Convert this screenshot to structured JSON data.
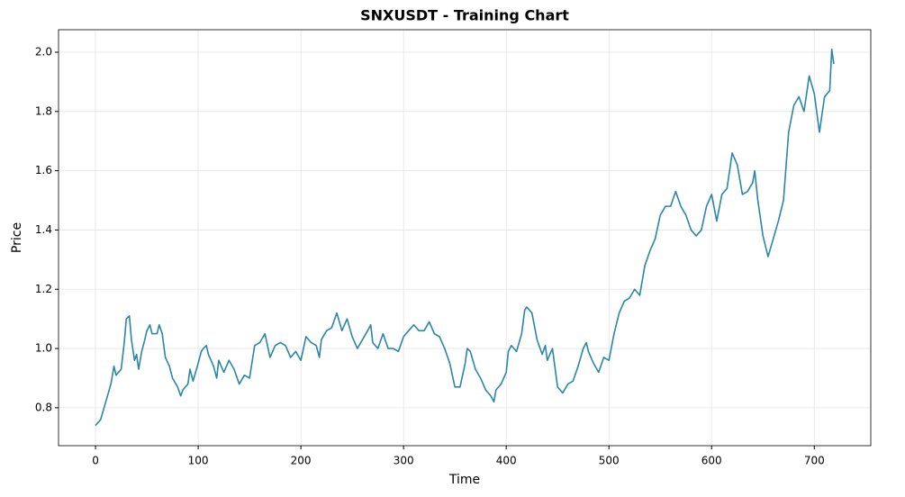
{
  "chart_data": {
    "type": "line",
    "title": "SNXUSDT - Training Chart",
    "xlabel": "Time",
    "ylabel": "Price",
    "color": "#2a86a8",
    "grid": true,
    "x": [
      0,
      5,
      10,
      15,
      18,
      20,
      25,
      28,
      30,
      33,
      35,
      38,
      40,
      42,
      45,
      48,
      50,
      53,
      55,
      60,
      62,
      65,
      68,
      72,
      75,
      80,
      83,
      85,
      90,
      92,
      95,
      100,
      103,
      105,
      108,
      110,
      115,
      118,
      120,
      125,
      130,
      135,
      140,
      145,
      150,
      155,
      160,
      165,
      170,
      175,
      180,
      185,
      190,
      195,
      200,
      205,
      210,
      215,
      218,
      220,
      225,
      230,
      235,
      240,
      245,
      250,
      255,
      260,
      265,
      268,
      270,
      275,
      280,
      285,
      290,
      295,
      300,
      305,
      310,
      315,
      320,
      325,
      330,
      335,
      340,
      345,
      350,
      355,
      360,
      362,
      365,
      370,
      375,
      380,
      385,
      388,
      390,
      395,
      400,
      402,
      405,
      410,
      415,
      418,
      420,
      425,
      430,
      435,
      438,
      440,
      445,
      450,
      455,
      460,
      465,
      470,
      475,
      478,
      480,
      485,
      490,
      495,
      500,
      505,
      510,
      515,
      520,
      525,
      530,
      535,
      540,
      545,
      550,
      555,
      560,
      565,
      570,
      575,
      580,
      585,
      590,
      595,
      600,
      605,
      610,
      615,
      620,
      625,
      630,
      635,
      640,
      642,
      645,
      650,
      655,
      660,
      665,
      670,
      675,
      680,
      685,
      690,
      695,
      700,
      705,
      710,
      715,
      717,
      719
    ],
    "values": [
      0.74,
      0.76,
      0.82,
      0.88,
      0.94,
      0.91,
      0.93,
      1.02,
      1.1,
      1.11,
      1.03,
      0.96,
      0.98,
      0.93,
      0.99,
      1.03,
      1.06,
      1.08,
      1.05,
      1.05,
      1.08,
      1.05,
      0.97,
      0.94,
      0.9,
      0.87,
      0.84,
      0.86,
      0.88,
      0.93,
      0.89,
      0.95,
      0.99,
      1.0,
      1.01,
      0.98,
      0.94,
      0.9,
      0.96,
      0.92,
      0.96,
      0.93,
      0.88,
      0.91,
      0.9,
      1.01,
      1.02,
      1.05,
      0.97,
      1.01,
      1.02,
      1.01,
      0.97,
      0.99,
      0.96,
      1.04,
      1.02,
      1.01,
      0.97,
      1.03,
      1.06,
      1.07,
      1.12,
      1.06,
      1.1,
      1.04,
      1.0,
      1.03,
      1.06,
      1.08,
      1.02,
      1.0,
      1.05,
      1.0,
      1.0,
      0.99,
      1.04,
      1.06,
      1.08,
      1.06,
      1.06,
      1.09,
      1.05,
      1.04,
      1.0,
      0.95,
      0.87,
      0.87,
      0.95,
      1.0,
      0.99,
      0.93,
      0.9,
      0.86,
      0.84,
      0.82,
      0.86,
      0.88,
      0.92,
      0.99,
      1.01,
      0.99,
      1.05,
      1.13,
      1.14,
      1.12,
      1.03,
      0.98,
      1.01,
      0.96,
      1.0,
      0.87,
      0.85,
      0.88,
      0.89,
      0.94,
      1.0,
      1.02,
      0.99,
      0.95,
      0.92,
      0.97,
      0.96,
      1.05,
      1.12,
      1.16,
      1.17,
      1.2,
      1.18,
      1.28,
      1.33,
      1.37,
      1.45,
      1.48,
      1.48,
      1.53,
      1.48,
      1.45,
      1.4,
      1.38,
      1.4,
      1.48,
      1.52,
      1.43,
      1.52,
      1.54,
      1.66,
      1.62,
      1.52,
      1.53,
      1.56,
      1.6,
      1.5,
      1.38,
      1.31,
      1.37,
      1.43,
      1.5,
      1.73,
      1.82,
      1.85,
      1.8,
      1.92,
      1.86,
      1.73,
      1.85,
      1.87,
      2.01,
      1.96
    ],
    "xlim": [
      -36,
      755
    ],
    "ylim": [
      0.672,
      2.076
    ],
    "xticks": [
      0,
      100,
      200,
      300,
      400,
      500,
      600,
      700
    ],
    "yticks": [
      {
        "value": 0.8,
        "label": "0.8"
      },
      {
        "value": 1.0,
        "label": "1.0"
      },
      {
        "value": 1.2,
        "label": "1.2"
      },
      {
        "value": 1.4,
        "label": "1.4"
      },
      {
        "value": 1.6,
        "label": "1.6"
      },
      {
        "value": 1.8,
        "label": "1.8"
      },
      {
        "value": 2.0,
        "label": "2.0"
      }
    ]
  }
}
